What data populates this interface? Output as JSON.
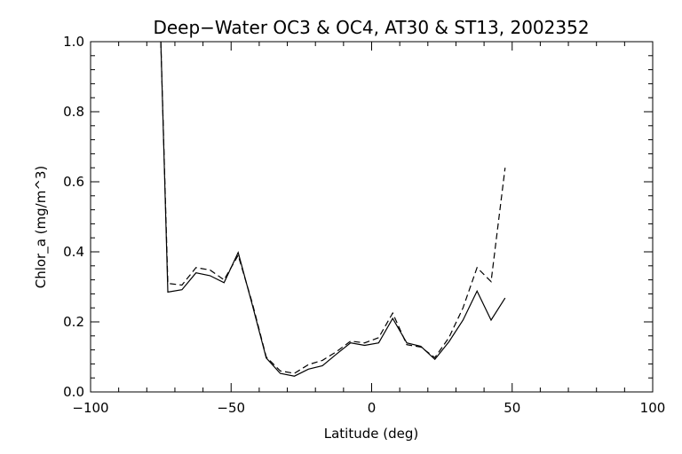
{
  "chart_data": {
    "type": "line",
    "title": "Deep−Water OC3 & OC4, AT30 & ST13, 2002352",
    "xlabel": "Latitude (deg)",
    "ylabel": "Chlor_a (mg/m^3)",
    "xlim": [
      -100,
      100
    ],
    "ylim": [
      0.0,
      1.0
    ],
    "xticks": [
      -100,
      -50,
      0,
      50,
      100
    ],
    "xtick_labels": [
      "−100",
      "−50",
      "0",
      "50",
      "100"
    ],
    "yticks": [
      0.0,
      0.2,
      0.4,
      0.6,
      0.8,
      1.0
    ],
    "ytick_labels": [
      "0.0",
      "0.2",
      "0.4",
      "0.6",
      "0.8",
      "1.0"
    ],
    "grid": false,
    "colors": {
      "line": "#000000",
      "axes": "#000000",
      "background": "#ffffff"
    },
    "series": [
      {
        "style": "solid",
        "x": [
          -75,
          -72.5,
          -67.5,
          -62.5,
          -57.5,
          -52.5,
          -47.5,
          -42.5,
          -37.5,
          -32.5,
          -27.5,
          -22.5,
          -17.5,
          -12.5,
          -7.5,
          -2.5,
          2.5,
          7.5,
          12.5,
          17.5,
          22.5,
          27.5,
          32.5,
          37.5,
          42.5,
          47.5
        ],
        "y": [
          1.0,
          0.285,
          0.292,
          0.34,
          0.332,
          0.312,
          0.398,
          0.25,
          0.097,
          0.053,
          0.045,
          0.065,
          0.075,
          0.108,
          0.14,
          0.133,
          0.14,
          0.21,
          0.14,
          0.13,
          0.093,
          0.143,
          0.205,
          0.288,
          0.205,
          0.268
        ]
      },
      {
        "style": "dashed",
        "x": [
          -75,
          -72.5,
          -67.5,
          -62.5,
          -57.5,
          -52.5,
          -47.5,
          -42.5,
          -37.5,
          -32.5,
          -27.5,
          -22.5,
          -17.5,
          -12.5,
          -7.5,
          -2.5,
          2.5,
          7.5,
          12.5,
          17.5,
          22.5,
          27.5,
          32.5,
          37.5,
          42.5,
          47.5
        ],
        "y": [
          1.0,
          0.31,
          0.305,
          0.355,
          0.348,
          0.32,
          0.39,
          0.255,
          0.1,
          0.06,
          0.053,
          0.078,
          0.09,
          0.115,
          0.145,
          0.14,
          0.155,
          0.225,
          0.135,
          0.128,
          0.098,
          0.155,
          0.24,
          0.355,
          0.315,
          0.64
        ]
      }
    ]
  }
}
